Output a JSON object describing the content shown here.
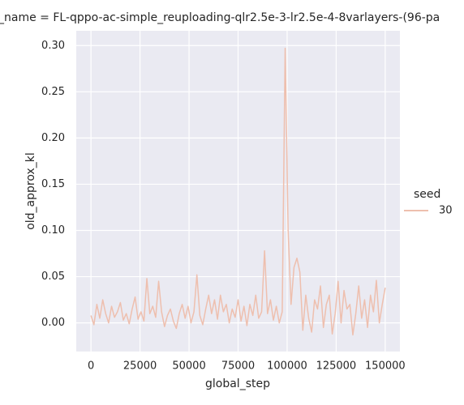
{
  "chart_data": {
    "type": "line",
    "title": "_name = FL-qppo-ac-simple_reuploading-qlr2.5e-3-lr2.5e-4-8varlayers-(96-pa",
    "x_label": "global_step",
    "y_label": "old_approx_kl",
    "legend_title": "seed",
    "x": [
      0,
      1500,
      3000,
      4500,
      6000,
      7500,
      9000,
      10500,
      12000,
      13500,
      15000,
      16500,
      18000,
      19500,
      21000,
      22500,
      24000,
      25500,
      27000,
      28500,
      30000,
      31500,
      33000,
      34500,
      36000,
      37500,
      39000,
      40500,
      42000,
      43500,
      45000,
      46500,
      48000,
      49500,
      51000,
      52500,
      54000,
      55500,
      57000,
      58500,
      60000,
      61500,
      63000,
      64500,
      66000,
      67500,
      69000,
      70500,
      72000,
      73500,
      75000,
      76500,
      78000,
      79500,
      81000,
      82500,
      84000,
      85500,
      87000,
      88500,
      90000,
      91500,
      93000,
      94500,
      96000,
      97500,
      99000,
      100500,
      102000,
      103500,
      105000,
      106500,
      108000,
      109500,
      111000,
      112500,
      114000,
      115500,
      117000,
      118500,
      120000,
      121500,
      123000,
      124500,
      126000,
      127500,
      129000,
      130500,
      132000,
      133500,
      135000,
      136500,
      138000,
      139500,
      141000,
      142500,
      144000,
      145500,
      147000,
      148500,
      150000
    ],
    "series": [
      {
        "name": "30",
        "color": "#eebfae",
        "values": [
          0.008,
          -0.002,
          0.02,
          0.005,
          0.025,
          0.01,
          0.0,
          0.018,
          0.006,
          0.012,
          0.022,
          0.003,
          0.01,
          -0.001,
          0.015,
          0.028,
          0.004,
          0.012,
          0.002,
          0.048,
          0.01,
          0.018,
          0.006,
          0.045,
          0.012,
          -0.004,
          0.008,
          0.015,
          0.002,
          -0.006,
          0.01,
          0.02,
          0.005,
          0.018,
          0.0,
          0.012,
          0.052,
          0.008,
          -0.002,
          0.015,
          0.03,
          0.01,
          0.025,
          0.004,
          0.03,
          0.012,
          0.02,
          0.0,
          0.015,
          0.006,
          0.025,
          0.002,
          0.018,
          -0.003,
          0.02,
          0.008,
          0.03,
          0.005,
          0.012,
          0.078,
          0.01,
          0.025,
          0.003,
          0.018,
          0.0,
          0.012,
          0.297,
          0.1,
          0.02,
          0.06,
          0.07,
          0.055,
          -0.008,
          0.03,
          0.005,
          -0.01,
          0.025,
          0.015,
          0.04,
          -0.005,
          0.02,
          0.03,
          -0.012,
          0.01,
          0.045,
          0.0,
          0.035,
          0.015,
          0.02,
          -0.013,
          0.01,
          0.04,
          0.005,
          0.025,
          -0.005,
          0.03,
          0.012,
          0.046,
          0.0,
          0.02,
          0.038
        ]
      }
    ],
    "xlim": [
      -7500,
      157500
    ],
    "xticks": [
      0,
      25000,
      50000,
      75000,
      100000,
      125000,
      150000
    ],
    "ylim": [
      -0.031,
      0.316
    ],
    "yticks": [
      {
        "value": 0,
        "label": "0.00"
      },
      {
        "value": 0.05,
        "label": "0.05"
      },
      {
        "value": 0.1,
        "label": "0.10"
      },
      {
        "value": 0.15,
        "label": "0.15"
      },
      {
        "value": 0.2,
        "label": "0.20"
      },
      {
        "value": 0.25,
        "label": "0.25"
      },
      {
        "value": 0.3,
        "label": "0.30"
      }
    ],
    "grid": true
  }
}
